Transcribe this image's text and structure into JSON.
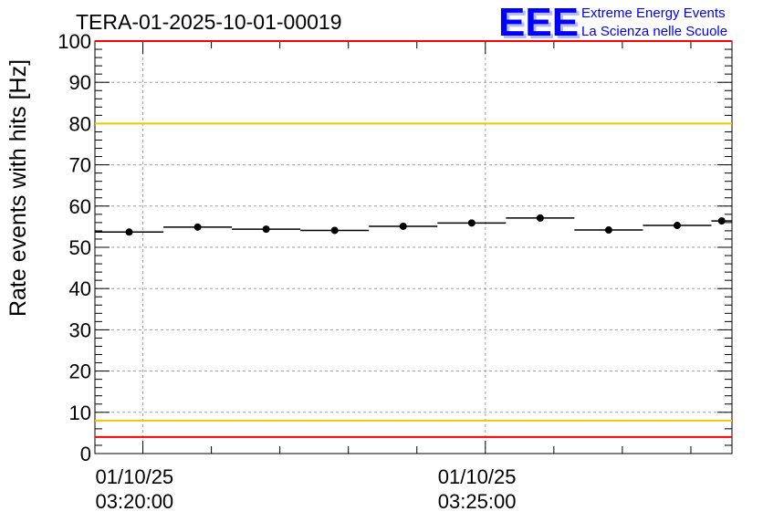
{
  "chart_data": {
    "type": "scatter",
    "title": "TERA-01-2025-10-01-00019",
    "ylabel": "Rate events with hits [Hz]",
    "xlabel": "",
    "ylim": [
      0,
      100
    ],
    "xlim_minutes": [
      0,
      9.3
    ],
    "y_ticks": [
      0,
      10,
      20,
      30,
      40,
      50,
      60,
      70,
      80,
      90,
      100
    ],
    "x_tick_labels": [
      {
        "at_minutes": 0.7,
        "date": "01/10/25",
        "time": "03:20:00"
      },
      {
        "at_minutes": 5.7,
        "date": "01/10/25",
        "time": "03:25:00"
      }
    ],
    "grid": true,
    "points": [
      {
        "x_start": 0.0,
        "x_end": 1.0,
        "y": 53.7,
        "err": 0.6
      },
      {
        "x_start": 1.0,
        "x_end": 2.0,
        "y": 54.9,
        "err": 0.6
      },
      {
        "x_start": 2.0,
        "x_end": 3.0,
        "y": 54.4,
        "err": 0.6
      },
      {
        "x_start": 3.0,
        "x_end": 4.0,
        "y": 54.1,
        "err": 0.6
      },
      {
        "x_start": 4.0,
        "x_end": 5.0,
        "y": 55.1,
        "err": 0.6
      },
      {
        "x_start": 5.0,
        "x_end": 6.0,
        "y": 55.9,
        "err": 0.6
      },
      {
        "x_start": 6.0,
        "x_end": 7.0,
        "y": 57.1,
        "err": 0.6
      },
      {
        "x_start": 7.0,
        "x_end": 8.0,
        "y": 54.2,
        "err": 0.6
      },
      {
        "x_start": 8.0,
        "x_end": 9.0,
        "y": 55.3,
        "err": 0.6
      },
      {
        "x_start": 9.0,
        "x_end": 9.3,
        "y": 56.4,
        "err": 0.6
      }
    ],
    "reference_lines": [
      {
        "y": 100,
        "color": "#ff0000"
      },
      {
        "y": 80,
        "color": "#f2c500"
      },
      {
        "y": 8,
        "color": "#f2c500"
      },
      {
        "y": 4,
        "color": "#ff0000"
      }
    ]
  },
  "logo": {
    "mark": "EEE",
    "line1": "Extreme Energy Events",
    "line2": "La Scienza nelle Scuole",
    "color": "#0000ff"
  }
}
